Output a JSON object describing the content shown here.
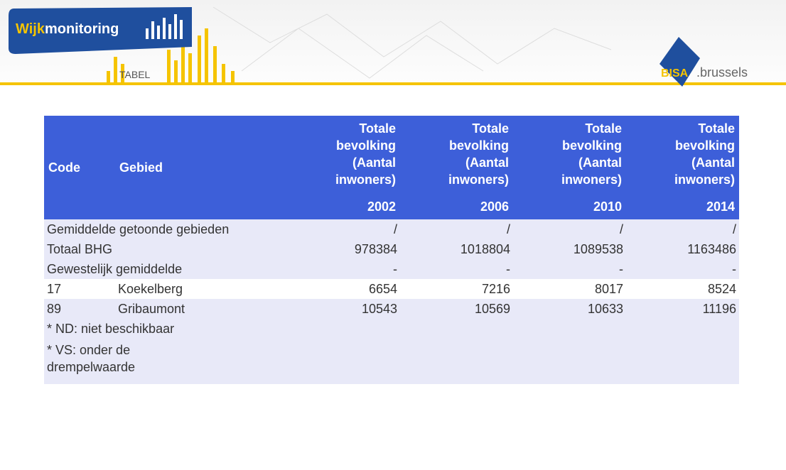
{
  "header": {
    "brand_prefix": "Wijk",
    "brand_suffix": "monitoring",
    "section": "TABEL",
    "partner": "BISA",
    "partner_suffix": ".brussels"
  },
  "table": {
    "code_header": "Code",
    "area_header": "Gebied",
    "columns": [
      {
        "label": "Totale bevolking (Aantal inwoners)",
        "year": "2002"
      },
      {
        "label": "Totale bevolking (Aantal inwoners)",
        "year": "2006"
      },
      {
        "label": "Totale bevolking (Aantal inwoners)",
        "year": "2010"
      },
      {
        "label": "Totale bevolking (Aantal inwoners)",
        "year": "2014"
      }
    ],
    "summary_rows": [
      {
        "label": "Gemiddelde getoonde gebieden",
        "values": [
          "/",
          "/",
          "/",
          "/"
        ]
      },
      {
        "label": "Totaal BHG",
        "values": [
          978384,
          1018804,
          1089538,
          1163486
        ]
      },
      {
        "label": "Gewestelijk gemiddelde",
        "values": [
          "-",
          "-",
          "-",
          "-"
        ]
      }
    ],
    "rows": [
      {
        "code": "17",
        "name": "Koekelberg",
        "values": [
          6654,
          7216,
          8017,
          8524
        ]
      },
      {
        "code": "89",
        "name": "Gribaumont",
        "values": [
          10543,
          10569,
          10633,
          11196
        ]
      }
    ],
    "notes": [
      "* ND: niet beschikbaar",
      "* VS: onder de drempelwaarde"
    ]
  }
}
